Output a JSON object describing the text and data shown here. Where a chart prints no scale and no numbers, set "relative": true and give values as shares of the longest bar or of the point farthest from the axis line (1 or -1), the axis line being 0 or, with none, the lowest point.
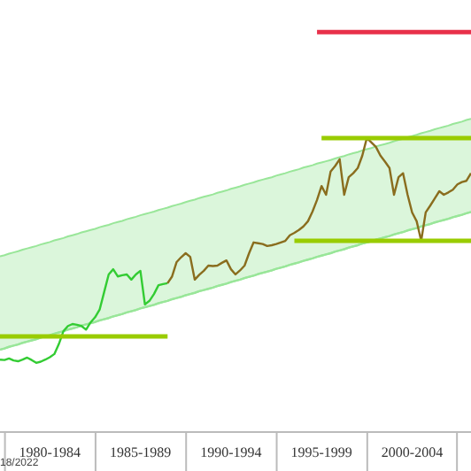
{
  "chart_data": {
    "type": "line",
    "relative": true,
    "categories": [
      null,
      null,
      null,
      null,
      null,
      null,
      null,
      null,
      null,
      null,
      null,
      "1980-1984",
      null,
      null,
      null,
      null,
      null,
      null,
      null,
      null,
      null,
      null,
      null,
      null,
      null,
      null,
      null,
      null,
      null,
      null,
      null,
      "1985-1989",
      null,
      null,
      null,
      null,
      null,
      null,
      null,
      null,
      null,
      null,
      null,
      null,
      null,
      null,
      null,
      null,
      null,
      null,
      null,
      "1990-1994",
      null,
      null,
      null,
      null,
      null,
      null,
      null,
      null,
      null,
      null,
      null,
      null,
      null,
      null,
      null,
      null,
      null,
      null,
      null,
      "1995-1999",
      null,
      null,
      null,
      null,
      null,
      null,
      null,
      null,
      null,
      null,
      null,
      null,
      null,
      null,
      null,
      null,
      null,
      null,
      null,
      "2000-2004",
      null,
      null,
      null,
      null,
      null,
      null,
      null,
      null,
      null,
      null,
      null,
      null,
      null
    ],
    "series": [
      {
        "type": "area",
        "color": "#99e699",
        "values": [
          0.439,
          0.442,
          0.446,
          0.449,
          0.452,
          0.456,
          0.459,
          0.462,
          0.465,
          0.469,
          0.472,
          0.475,
          0.479,
          0.482,
          0.485,
          0.489,
          0.492,
          0.495,
          0.499,
          0.502,
          0.505,
          0.508,
          0.512,
          0.515,
          0.518,
          0.522,
          0.525,
          0.528,
          0.532,
          0.535,
          0.538,
          0.542,
          0.545,
          0.548,
          0.551,
          0.555,
          0.558,
          0.561,
          0.565,
          0.568,
          0.571,
          0.575,
          0.578,
          0.581,
          0.585,
          0.588,
          0.591,
          0.594,
          0.598,
          0.601,
          0.604,
          0.608,
          0.611,
          0.614,
          0.618,
          0.621,
          0.624,
          0.628,
          0.631,
          0.634,
          0.637,
          0.641,
          0.644,
          0.647,
          0.651,
          0.654,
          0.657,
          0.661,
          0.664,
          0.667,
          0.671,
          0.674,
          0.677,
          0.68,
          0.684,
          0.687,
          0.69,
          0.694,
          0.697,
          0.7,
          0.704,
          0.707,
          0.71,
          0.714,
          0.717,
          0.72,
          0.723,
          0.727,
          0.73,
          0.733,
          0.737,
          0.74,
          0.743,
          0.747,
          0.75,
          0.753,
          0.757,
          0.76,
          0.763,
          0.766,
          0.77,
          0.773,
          0.776,
          0.78,
          0.783
        ]
      },
      {
        "color": "#99e699",
        "values": [
          0.206,
          0.209,
          0.213,
          0.216,
          0.219,
          0.223,
          0.226,
          0.229,
          0.232,
          0.236,
          0.239,
          0.242,
          0.246,
          0.249,
          0.252,
          0.256,
          0.259,
          0.262,
          0.266,
          0.269,
          0.272,
          0.275,
          0.279,
          0.282,
          0.285,
          0.289,
          0.292,
          0.295,
          0.299,
          0.302,
          0.305,
          0.309,
          0.312,
          0.315,
          0.318,
          0.322,
          0.325,
          0.328,
          0.332,
          0.335,
          0.338,
          0.342,
          0.345,
          0.348,
          0.352,
          0.355,
          0.358,
          0.361,
          0.365,
          0.368,
          0.371,
          0.375,
          0.378,
          0.381,
          0.385,
          0.388,
          0.391,
          0.395,
          0.398,
          0.401,
          0.404,
          0.408,
          0.411,
          0.414,
          0.418,
          0.421,
          0.424,
          0.428,
          0.431,
          0.434,
          0.438,
          0.441,
          0.444,
          0.447,
          0.451,
          0.454,
          0.457,
          0.461,
          0.464,
          0.467,
          0.471,
          0.474,
          0.477,
          0.481,
          0.484,
          0.487,
          0.49,
          0.494,
          0.497,
          0.5,
          0.504,
          0.507,
          0.51,
          0.514,
          0.517,
          0.52,
          0.524,
          0.527,
          0.53,
          0.533,
          0.537,
          0.54,
          0.543,
          0.547,
          0.55
        ]
      },
      {
        "color": "#33cc33",
        "values": [
          0.181,
          0.18,
          0.184,
          0.179,
          0.177,
          0.181,
          0.186,
          0.18,
          0.173,
          0.176,
          0.181,
          0.187,
          0.195,
          0.22,
          0.252,
          0.265,
          0.27,
          0.268,
          0.265,
          0.256,
          0.274,
          0.287,
          0.306,
          0.35,
          0.394,
          0.407,
          0.389,
          0.392,
          0.394,
          0.381,
          0.394,
          0.403,
          0.319,
          0.328,
          0.345,
          0.367,
          0.37,
          0.372,
          null,
          null,
          null,
          null,
          null,
          null,
          null,
          null,
          null,
          null,
          null,
          null,
          null,
          null,
          null,
          null,
          null,
          null,
          null,
          null,
          null,
          null,
          null,
          null,
          null,
          null,
          null,
          null,
          null,
          null,
          null,
          null,
          null,
          null,
          null,
          null,
          null,
          null,
          null,
          null,
          null,
          null,
          null,
          null,
          null,
          null,
          null,
          null,
          null,
          null,
          null,
          null,
          null,
          null,
          null,
          null,
          null,
          null,
          null,
          null,
          null,
          null,
          null,
          null,
          null,
          null,
          null
        ]
      },
      {
        "color": "#8a6d1e",
        "values": [
          null,
          null,
          null,
          null,
          null,
          null,
          null,
          null,
          null,
          null,
          null,
          null,
          null,
          null,
          null,
          null,
          null,
          null,
          null,
          null,
          null,
          null,
          null,
          null,
          null,
          null,
          null,
          null,
          null,
          null,
          null,
          null,
          null,
          null,
          null,
          null,
          null,
          0.372,
          0.389,
          0.425,
          0.437,
          0.447,
          0.438,
          0.381,
          0.393,
          0.403,
          0.416,
          0.415,
          0.416,
          0.423,
          0.429,
          0.407,
          0.394,
          0.404,
          0.416,
          0.447,
          0.474,
          0.472,
          0.47,
          0.465,
          0.467,
          0.47,
          0.474,
          0.478,
          0.492,
          0.498,
          0.505,
          0.514,
          0.527,
          0.551,
          0.58,
          0.615,
          0.593,
          0.651,
          0.665,
          0.682,
          0.593,
          0.637,
          0.647,
          0.66,
          0.691,
          0.735,
          0.724,
          0.713,
          0.691,
          0.676,
          0.66,
          0.593,
          0.637,
          0.647,
          0.593,
          0.549,
          0.527,
          0.478,
          0.549,
          0.566,
          0.584,
          0.602,
          0.593,
          0.599,
          0.606,
          0.619,
          0.625,
          0.628,
          0.647
        ]
      },
      {
        "color": "#e8304a",
        "values": [
          null,
          null,
          null,
          null,
          null,
          null,
          null,
          null,
          null,
          null,
          null,
          null,
          null,
          null,
          null,
          null,
          null,
          null,
          null,
          null,
          null,
          null,
          null,
          null,
          null,
          null,
          null,
          null,
          null,
          null,
          null,
          null,
          null,
          null,
          null,
          null,
          null,
          null,
          null,
          null,
          null,
          null,
          null,
          null,
          null,
          null,
          null,
          null,
          null,
          null,
          null,
          null,
          null,
          null,
          null,
          null,
          null,
          null,
          null,
          null,
          null,
          null,
          null,
          null,
          null,
          null,
          null,
          null,
          null,
          null,
          1,
          1,
          1,
          1,
          1,
          1,
          1,
          1,
          1,
          1,
          1,
          1,
          1,
          1,
          1,
          1,
          1,
          1,
          1,
          1,
          1,
          1,
          1,
          1,
          1,
          1,
          1,
          1,
          1,
          1,
          1,
          1,
          1,
          1,
          1
        ]
      },
      {
        "color": "#99cc00",
        "values": [
          null,
          null,
          null,
          null,
          null,
          null,
          null,
          null,
          null,
          null,
          null,
          null,
          null,
          null,
          null,
          null,
          null,
          null,
          null,
          null,
          null,
          null,
          null,
          null,
          null,
          null,
          null,
          null,
          null,
          null,
          null,
          null,
          null,
          null,
          null,
          null,
          null,
          null,
          null,
          null,
          null,
          null,
          null,
          null,
          null,
          null,
          null,
          null,
          null,
          null,
          null,
          null,
          null,
          null,
          null,
          null,
          null,
          null,
          null,
          null,
          null,
          null,
          null,
          null,
          null,
          null,
          null,
          null,
          null,
          null,
          null,
          0.735,
          0.735,
          0.735,
          0.735,
          0.735,
          0.735,
          0.735,
          0.735,
          0.735,
          0.735,
          0.735,
          0.735,
          0.735,
          0.735,
          0.735,
          0.735,
          0.735,
          0.735,
          0.735,
          0.735,
          0.735,
          0.735,
          0.735,
          0.735,
          0.735,
          0.735,
          0.735,
          0.735,
          0.735,
          0.735,
          0.735,
          0.735,
          0.735,
          0.735
        ]
      },
      {
        "color": "#99cc00",
        "values": [
          null,
          null,
          null,
          null,
          null,
          null,
          null,
          null,
          null,
          null,
          null,
          null,
          null,
          null,
          null,
          null,
          null,
          null,
          null,
          null,
          null,
          null,
          null,
          null,
          null,
          null,
          null,
          null,
          null,
          null,
          null,
          null,
          null,
          null,
          null,
          null,
          null,
          null,
          null,
          null,
          null,
          null,
          null,
          null,
          null,
          null,
          null,
          null,
          null,
          null,
          null,
          null,
          null,
          null,
          null,
          null,
          null,
          null,
          null,
          null,
          null,
          null,
          null,
          null,
          null,
          0.478,
          0.478,
          0.478,
          0.478,
          0.478,
          0.478,
          0.478,
          0.478,
          0.478,
          0.478,
          0.478,
          0.478,
          0.478,
          0.478,
          0.478,
          0.478,
          0.478,
          0.478,
          0.478,
          0.478,
          0.478,
          0.478,
          0.478,
          0.478,
          0.478,
          0.478,
          0.478,
          0.478,
          0.478,
          0.478,
          0.478,
          0.478,
          0.478,
          0.478,
          0.478,
          0.478,
          0.478,
          0.478,
          0.478,
          0.478
        ]
      },
      {
        "color": "#99cc00",
        "values": [
          0.239,
          0.239,
          0.239,
          0.239,
          0.239,
          0.239,
          0.239,
          0.239,
          0.239,
          0.239,
          0.239,
          0.239,
          0.239,
          0.239,
          0.239,
          0.239,
          0.239,
          0.239,
          0.239,
          0.239,
          0.239,
          0.239,
          0.239,
          0.239,
          0.239,
          0.239,
          0.239,
          0.239,
          0.239,
          0.239,
          0.239,
          0.239,
          0.239,
          0.239,
          0.239,
          0.239,
          0.239,
          0.239,
          null,
          null,
          null,
          null,
          null,
          null,
          null,
          null,
          null,
          null,
          null,
          null,
          null,
          null,
          null,
          null,
          null,
          null,
          null,
          null,
          null,
          null,
          null,
          null,
          null,
          null,
          null,
          null,
          null,
          null,
          null,
          null,
          null,
          null,
          null,
          null,
          null,
          null,
          null,
          null,
          null,
          null,
          null,
          null,
          null,
          null,
          null,
          null,
          null,
          null,
          null,
          null,
          null,
          null,
          null,
          null,
          null,
          null,
          null,
          null,
          null,
          null,
          null,
          null,
          null,
          null,
          null
        ]
      }
    ],
    "annotations": [
      "18/2022"
    ]
  }
}
